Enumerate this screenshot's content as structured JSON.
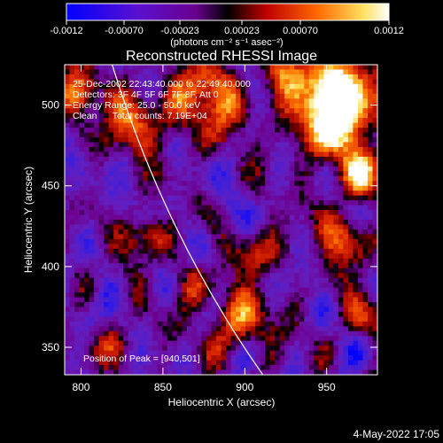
{
  "chart_data": {
    "type": "heatmap",
    "title": "Reconstructed RHESSI Image",
    "xlabel": "Heliocentric X (arcsec)",
    "ylabel": "Heliocentric Y (arcsec)",
    "xlim": [
      790,
      981
    ],
    "ylim": [
      333,
      525
    ],
    "xticks": [
      800,
      850,
      900,
      950
    ],
    "yticks": [
      350,
      400,
      450,
      500
    ],
    "colorbar": {
      "label": "(photons cm⁻² s⁻¹ asec⁻²)",
      "range": [
        -0.0012,
        0.0012
      ],
      "ticks": [
        "-0.0012",
        "-0.00070",
        "-0.00023",
        "0.00023",
        "0.00070",
        "0.0012"
      ]
    },
    "info_lines": [
      "25-Dec-2002 22:43:40.000 to 22:49:40.000",
      "Detectors: 3F 4F 5F 6F 7F 8F, Att 0",
      "Energy Range: 25.0 - 50.0 keV",
      "Clean      Total counts: 7.19E+04"
    ],
    "peak_text": "Position of Peak = [940,501]",
    "peak": {
      "x": 940,
      "y": 501
    },
    "limb": {
      "x_top": 819,
      "x_bottom": 911
    },
    "date_stamp": "4-May-2022 17:05",
    "colors": {
      "background": "#000000",
      "foreground": "#ffffff",
      "colormap": [
        "#0000ff",
        "#6000c0",
        "#000000",
        "#c00000",
        "#ff7000",
        "#ffff80",
        "#ffffff"
      ]
    }
  }
}
